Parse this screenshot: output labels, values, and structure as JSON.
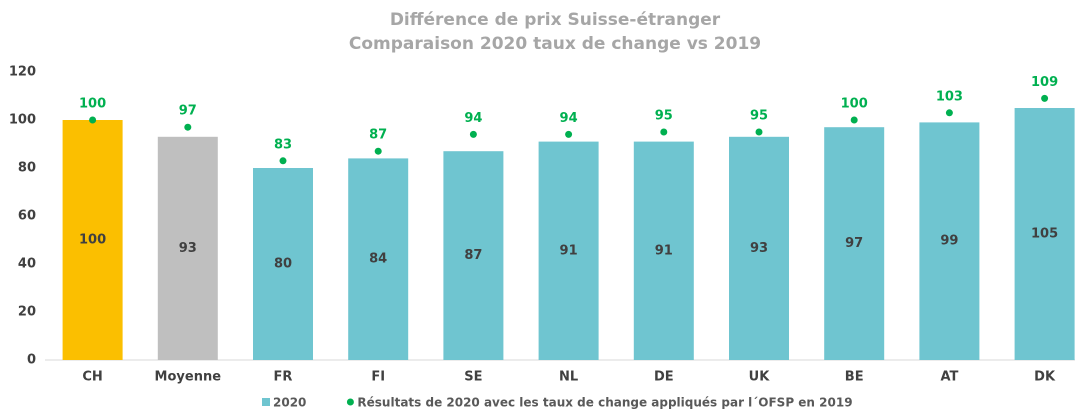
{
  "chart_data": {
    "type": "bar",
    "title": "Différence de prix Suisse-étranger",
    "subtitle": "Comparaison 2020 taux de change vs 2019",
    "categories": [
      "CH",
      "Moyenne",
      "FR",
      "FI",
      "SE",
      "NL",
      "DE",
      "UK",
      "BE",
      "AT",
      "DK"
    ],
    "series": [
      {
        "name": "2020",
        "type": "bar",
        "color": "#6fc5d0",
        "colors": [
          "#fbbf00",
          "#bfbfbf",
          "#6fc5d0",
          "#6fc5d0",
          "#6fc5d0",
          "#6fc5d0",
          "#6fc5d0",
          "#6fc5d0",
          "#6fc5d0",
          "#6fc5d0",
          "#6fc5d0"
        ],
        "values": [
          100,
          93,
          80,
          84,
          87,
          91,
          91,
          93,
          97,
          99,
          105
        ]
      },
      {
        "name": "Résultats de 2020 avec les taux de change appliqués par l´OFSP en 2019",
        "type": "scatter",
        "color": "#00b050",
        "values": [
          100,
          97,
          83,
          87,
          94,
          94,
          95,
          95,
          100,
          103,
          109
        ]
      }
    ],
    "ylim": [
      0,
      120
    ],
    "yticks": [
      0,
      20,
      40,
      60,
      80,
      100,
      120
    ],
    "grid": false
  }
}
